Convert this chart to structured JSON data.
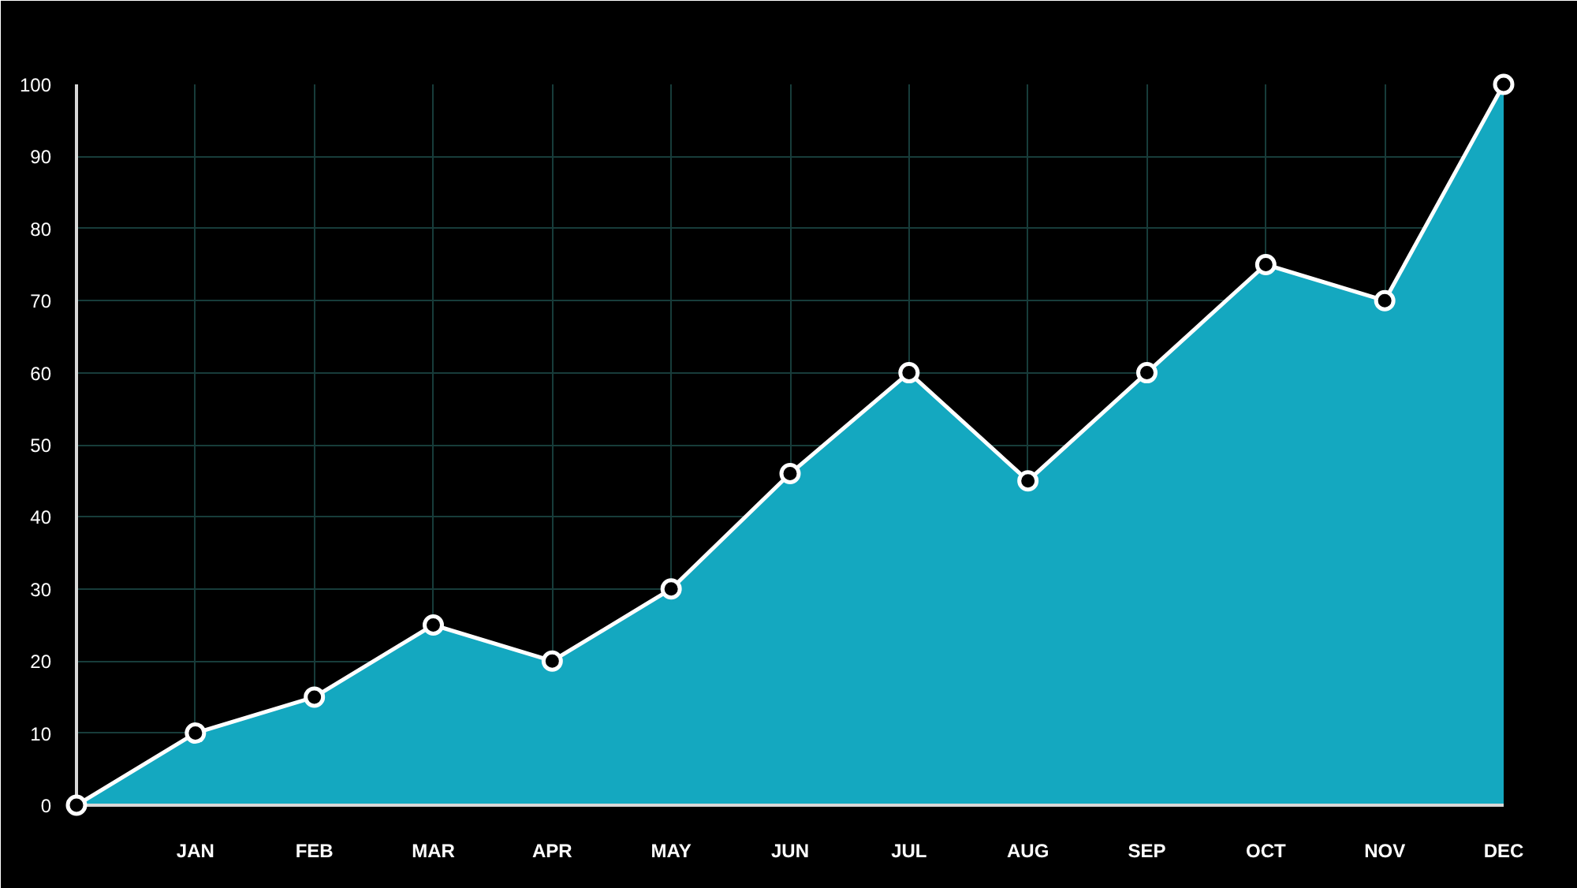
{
  "chart_data": {
    "type": "area",
    "categories": [
      null,
      "JAN",
      "FEB",
      "MAR",
      "APR",
      "MAY",
      "JUN",
      "JUL",
      "AUG",
      "SEP",
      "OCT",
      "NOV",
      "DEC"
    ],
    "series": [
      {
        "color": "#14a8c0",
        "values": [
          0,
          10,
          15,
          25,
          20,
          30,
          46,
          60,
          45,
          60,
          75,
          70,
          100
        ]
      }
    ],
    "ylim": [
      0,
      100
    ],
    "yticks": [
      0,
      10,
      20,
      30,
      40,
      50,
      60,
      70,
      80,
      90,
      100
    ],
    "grid": true,
    "marker": "circle",
    "line_style": "solid"
  }
}
